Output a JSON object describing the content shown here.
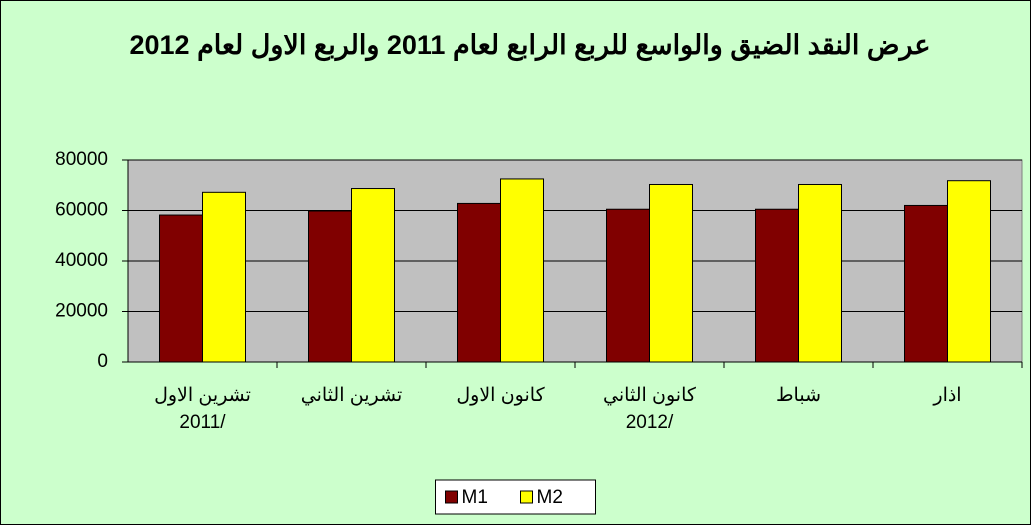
{
  "chart_data": {
    "type": "bar",
    "title": "عرض النقد الضيق والواسع للربع الرابع لعام 2011 والربع الاول لعام 2012",
    "categories": [
      "تشرين الاول\n2011/",
      "تشرين الثاني",
      "كانون الاول",
      "كانون الثاني\n2012/",
      "شباط",
      "اذار"
    ],
    "series": [
      {
        "name": "M1",
        "color": "#800000",
        "values": [
          58200,
          59800,
          62800,
          60500,
          60500,
          62000
        ]
      },
      {
        "name": "M2",
        "color": "#ffff00",
        "values": [
          67200,
          68700,
          72500,
          70300,
          70300,
          71800
        ]
      }
    ],
    "ylim": [
      0,
      80000
    ],
    "yticks": [
      0,
      20000,
      40000,
      60000,
      80000
    ],
    "grid": true,
    "legend": "bottom"
  }
}
